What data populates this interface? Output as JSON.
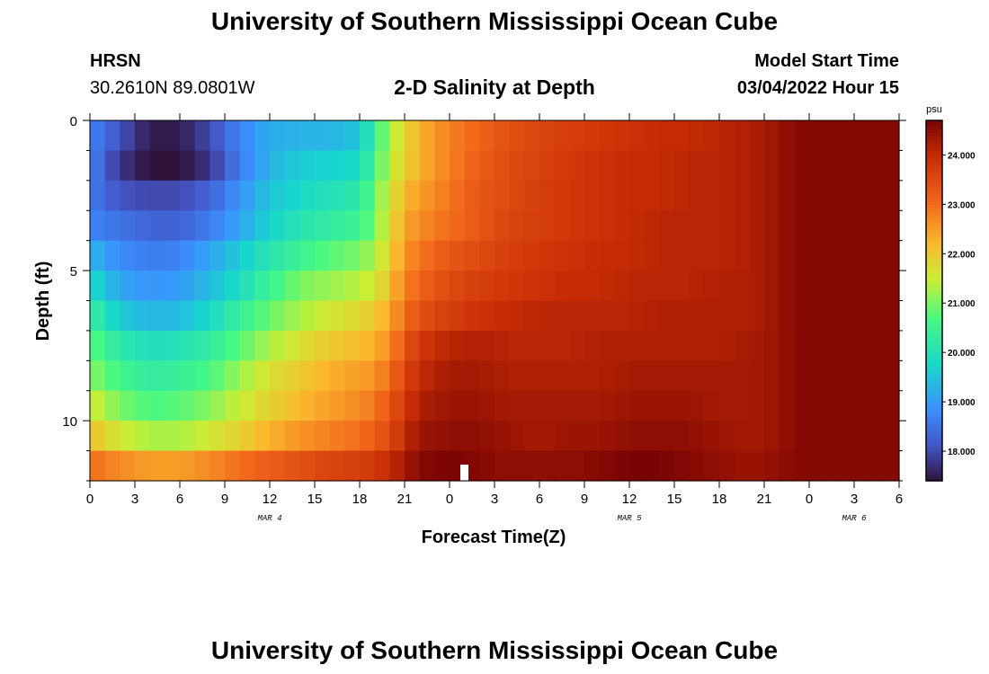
{
  "header": {
    "title": "University of Southern Mississippi Ocean Cube",
    "station": "HRSN",
    "coords": "30.2610N  89.0801W",
    "subtitle": "2-D Salinity at Depth",
    "start_label": "Model Start Time",
    "start_value": "03/04/2022 Hour 15"
  },
  "footer": {
    "title": "University of Southern Mississippi Ocean Cube"
  },
  "chart_data": {
    "type": "heatmap",
    "title": "2-D Salinity at Depth",
    "xlabel": "Forecast Time(Z)",
    "ylabel": "Depth (ft)",
    "xlim": [
      0,
      54
    ],
    "ylim": [
      12,
      0
    ],
    "x_tick_labels": [
      "0",
      "3",
      "6",
      "9",
      "12",
      "15",
      "18",
      "21",
      "0",
      "3",
      "6",
      "9",
      "12",
      "15",
      "18",
      "21",
      "0",
      "3",
      "6"
    ],
    "x_tick_hours": [
      0,
      3,
      6,
      9,
      12,
      15,
      18,
      21,
      24,
      27,
      30,
      33,
      36,
      39,
      42,
      45,
      48,
      51,
      54
    ],
    "y_ticks": [
      0,
      5,
      10
    ],
    "date_labels": [
      {
        "label": "MAR 4",
        "hour": 12
      },
      {
        "label": "MAR 5",
        "hour": 36
      },
      {
        "label": "MAR 6",
        "hour": 51
      }
    ],
    "colorbar": {
      "unit": "psu",
      "min": 17.4,
      "max": 24.7,
      "ticks": [
        "18.000",
        "19.000",
        "20.000",
        "21.000",
        "22.000",
        "23.000",
        "24.000"
      ],
      "tick_values": [
        18,
        19,
        20,
        21,
        22,
        23,
        24
      ]
    },
    "depth_levels_ft": [
      0.5,
      1.5,
      2.5,
      3.5,
      4.5,
      5.5,
      6.5,
      7.5,
      8.5,
      9.5,
      10.5,
      11.5
    ],
    "hour_samples": [
      0,
      2,
      4,
      6,
      8,
      10,
      12,
      14,
      16,
      18,
      19,
      20,
      21,
      22,
      24,
      26,
      28,
      30,
      32,
      34,
      36,
      38,
      40,
      42,
      44,
      46,
      47,
      48,
      50,
      52,
      54
    ],
    "salinity_psu": [
      [
        18.7,
        18.1,
        17.5,
        17.5,
        18.0,
        18.7,
        19.2,
        19.3,
        19.3,
        19.5,
        20.4,
        21.3,
        21.8,
        22.3,
        22.8,
        23.1,
        23.4,
        23.6,
        23.7,
        23.8,
        23.9,
        24.0,
        24.0,
        24.1,
        24.2,
        24.4,
        24.6,
        24.6,
        24.6,
        24.6,
        24.6
      ],
      [
        18.7,
        17.8,
        17.4,
        17.4,
        17.8,
        18.6,
        19.3,
        19.6,
        19.7,
        19.8,
        20.6,
        21.4,
        21.9,
        22.3,
        22.8,
        23.2,
        23.5,
        23.6,
        23.8,
        23.9,
        24.0,
        24.0,
        24.1,
        24.1,
        24.2,
        24.4,
        24.6,
        24.6,
        24.6,
        24.6,
        24.6
      ],
      [
        18.6,
        18.1,
        18.0,
        18.0,
        18.3,
        18.9,
        19.5,
        19.8,
        20.0,
        20.2,
        20.9,
        21.6,
        22.2,
        22.5,
        22.9,
        23.3,
        23.5,
        23.7,
        23.8,
        23.9,
        24.0,
        24.0,
        24.1,
        24.1,
        24.2,
        24.4,
        24.6,
        24.6,
        24.6,
        24.6,
        24.6
      ],
      [
        18.7,
        18.5,
        18.3,
        18.3,
        18.6,
        19.1,
        19.7,
        20.1,
        20.3,
        20.5,
        21.0,
        21.7,
        22.4,
        22.7,
        23.0,
        23.3,
        23.6,
        23.7,
        23.8,
        23.9,
        24.0,
        24.1,
        24.1,
        24.1,
        24.2,
        24.4,
        24.6,
        24.6,
        24.6,
        24.6,
        24.6
      ],
      [
        19.3,
        18.8,
        18.6,
        18.7,
        19.1,
        19.6,
        20.1,
        20.5,
        20.8,
        21.0,
        21.3,
        21.9,
        22.6,
        22.9,
        23.3,
        23.5,
        23.7,
        23.8,
        23.9,
        24.0,
        24.0,
        24.1,
        24.1,
        24.1,
        24.2,
        24.4,
        24.6,
        24.6,
        24.6,
        24.6,
        24.6
      ],
      [
        19.9,
        19.1,
        18.9,
        19.0,
        19.4,
        19.9,
        20.5,
        21.0,
        21.2,
        21.4,
        21.6,
        22.1,
        22.8,
        23.1,
        23.5,
        23.7,
        23.8,
        23.9,
        24.0,
        24.0,
        24.1,
        24.1,
        24.1,
        24.2,
        24.2,
        24.4,
        24.6,
        24.6,
        24.6,
        24.6,
        24.6
      ],
      [
        20.4,
        19.6,
        19.3,
        19.4,
        19.8,
        20.4,
        20.9,
        21.3,
        21.6,
        21.8,
        22.0,
        22.4,
        23.0,
        23.4,
        23.7,
        23.9,
        24.0,
        24.1,
        24.1,
        24.1,
        24.1,
        24.2,
        24.2,
        24.2,
        24.2,
        24.4,
        24.6,
        24.6,
        24.6,
        24.6,
        24.6
      ],
      [
        20.8,
        20.2,
        19.9,
        20.0,
        20.3,
        20.8,
        21.3,
        21.7,
        22.0,
        22.2,
        22.3,
        22.7,
        23.3,
        23.8,
        24.1,
        24.2,
        24.1,
        24.1,
        24.1,
        24.2,
        24.2,
        24.2,
        24.2,
        24.2,
        24.3,
        24.4,
        24.6,
        24.6,
        24.6,
        24.6,
        24.6
      ],
      [
        21.1,
        20.6,
        20.3,
        20.4,
        20.7,
        21.2,
        21.7,
        22.0,
        22.3,
        22.5,
        22.6,
        23.0,
        23.6,
        24.0,
        24.3,
        24.3,
        24.2,
        24.2,
        24.2,
        24.2,
        24.3,
        24.3,
        24.3,
        24.3,
        24.3,
        24.4,
        24.6,
        24.6,
        24.6,
        24.6,
        24.6
      ],
      [
        21.6,
        21.0,
        20.7,
        20.8,
        21.1,
        21.5,
        21.9,
        22.2,
        22.5,
        22.7,
        22.9,
        23.3,
        23.8,
        24.2,
        24.4,
        24.4,
        24.3,
        24.3,
        24.3,
        24.3,
        24.4,
        24.4,
        24.4,
        24.3,
        24.3,
        24.4,
        24.6,
        24.6,
        24.6,
        24.6,
        24.6
      ],
      [
        22.1,
        21.6,
        21.3,
        21.3,
        21.6,
        21.9,
        22.3,
        22.6,
        22.8,
        23.0,
        23.2,
        23.5,
        24.0,
        24.4,
        24.5,
        24.5,
        24.4,
        24.3,
        24.4,
        24.4,
        24.5,
        24.5,
        24.5,
        24.4,
        24.3,
        24.4,
        24.6,
        24.6,
        24.6,
        24.6,
        24.6
      ],
      [
        23.0,
        22.7,
        22.5,
        22.5,
        22.7,
        23.0,
        23.2,
        23.4,
        23.6,
        23.7,
        23.8,
        24.0,
        24.3,
        24.6,
        24.7,
        24.6,
        24.5,
        24.5,
        24.5,
        24.6,
        24.7,
        24.7,
        24.6,
        24.5,
        24.4,
        24.5,
        24.6,
        24.6,
        24.6,
        24.6,
        24.6
      ]
    ]
  }
}
